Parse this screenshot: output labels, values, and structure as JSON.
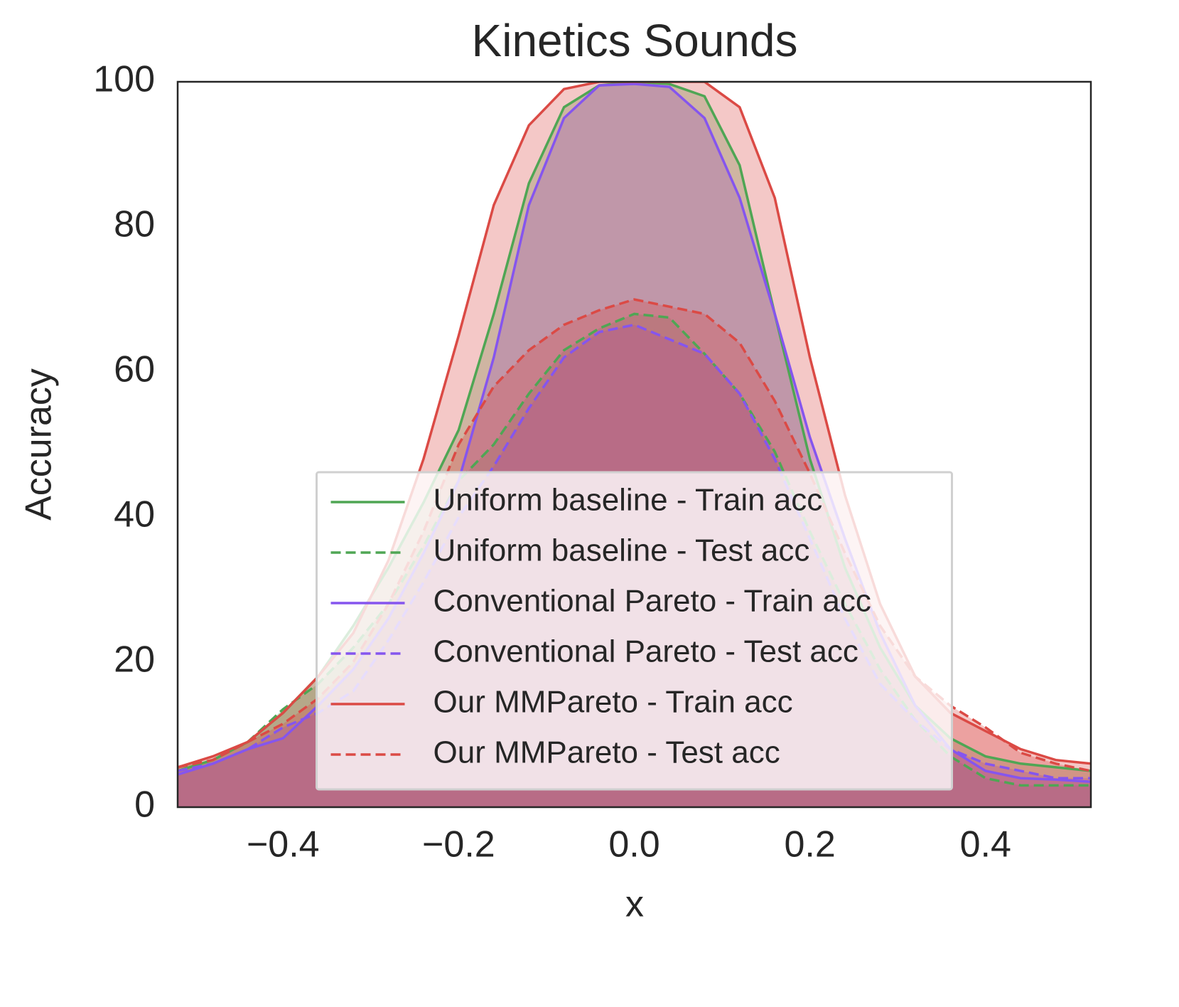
{
  "chart_data": {
    "type": "line",
    "title": "Kinetics Sounds",
    "xlabel": "x",
    "ylabel": "Accuracy",
    "x": [
      -0.52,
      -0.48,
      -0.44,
      -0.4,
      -0.36,
      -0.32,
      -0.28,
      -0.24,
      -0.2,
      -0.16,
      -0.12,
      -0.08,
      -0.04,
      0,
      0.04,
      0.08,
      0.12,
      0.16,
      0.2,
      0.24,
      0.28,
      0.32,
      0.36,
      0.4,
      0.44,
      0.48,
      0.52
    ],
    "series": [
      {
        "name": "Uniform baseline - Train acc",
        "color": "#4fa654",
        "linestyle": "solid",
        "values": [
          5,
          6.5,
          9,
          13,
          18,
          25,
          33,
          42,
          52,
          68,
          86,
          96.5,
          99.5,
          100,
          99.7,
          98,
          88.5,
          68,
          48,
          33,
          22,
          14,
          9.5,
          7,
          6,
          5.5,
          5
        ]
      },
      {
        "name": "Uniform baseline - Test acc",
        "color": "#4fa654",
        "linestyle": "dashed",
        "values": [
          5.5,
          6.5,
          9,
          13.5,
          17,
          22,
          28,
          36,
          45,
          50,
          57,
          63,
          66,
          68,
          67.5,
          62.5,
          57,
          49,
          38,
          28,
          19,
          12,
          7,
          4,
          3,
          3,
          3
        ]
      },
      {
        "name": "Conventional Pareto - Train acc",
        "color": "#8555ee",
        "linestyle": "solid",
        "values": [
          4.5,
          6,
          8,
          9.5,
          14,
          19,
          26,
          35,
          45,
          62,
          83,
          95,
          99.5,
          99.7,
          99.3,
          95,
          84,
          68,
          51,
          37,
          24,
          14,
          8,
          5,
          4,
          3.8,
          3.5
        ]
      },
      {
        "name": "Conventional Pareto - Test acc",
        "color": "#8555ee",
        "linestyle": "dashed",
        "values": [
          5,
          6,
          8,
          11,
          13,
          16,
          23,
          31,
          40,
          47,
          55,
          62,
          65.5,
          66.5,
          64.5,
          62.5,
          57,
          48,
          37,
          26,
          17,
          12,
          8,
          6,
          5,
          4,
          4
        ]
      },
      {
        "name": "Our MMPareto - Train acc",
        "color": "#db4a45",
        "linestyle": "solid",
        "values": [
          5.5,
          7,
          9,
          13,
          18,
          24,
          34,
          48,
          65,
          83,
          94,
          99,
          100,
          100,
          100,
          100,
          96.5,
          84,
          62,
          43,
          28,
          18,
          13,
          10.5,
          8,
          6.5,
          6
        ]
      },
      {
        "name": "Our MMPareto - Test acc",
        "color": "#db4a45",
        "linestyle": "dashed",
        "values": [
          5.5,
          6.5,
          9,
          11.5,
          15,
          20,
          28,
          38,
          50,
          58,
          63,
          66.5,
          68.5,
          70,
          69,
          68,
          64,
          56,
          46,
          35,
          25,
          18,
          14,
          11,
          7.5,
          6,
          5
        ]
      }
    ],
    "xlim": [
      -0.52,
      0.52
    ],
    "ylim": [
      0,
      100
    ],
    "xticks": [
      {
        "value": -0.4,
        "label": "−0.4"
      },
      {
        "value": -0.2,
        "label": "−0.2"
      },
      {
        "value": 0,
        "label": "0.0"
      },
      0.2,
      0.4
    ],
    "yticks": [
      0,
      20,
      40,
      60,
      80,
      100
    ],
    "grid": false,
    "legend": "lower center",
    "fill_opacity": 0.3
  }
}
